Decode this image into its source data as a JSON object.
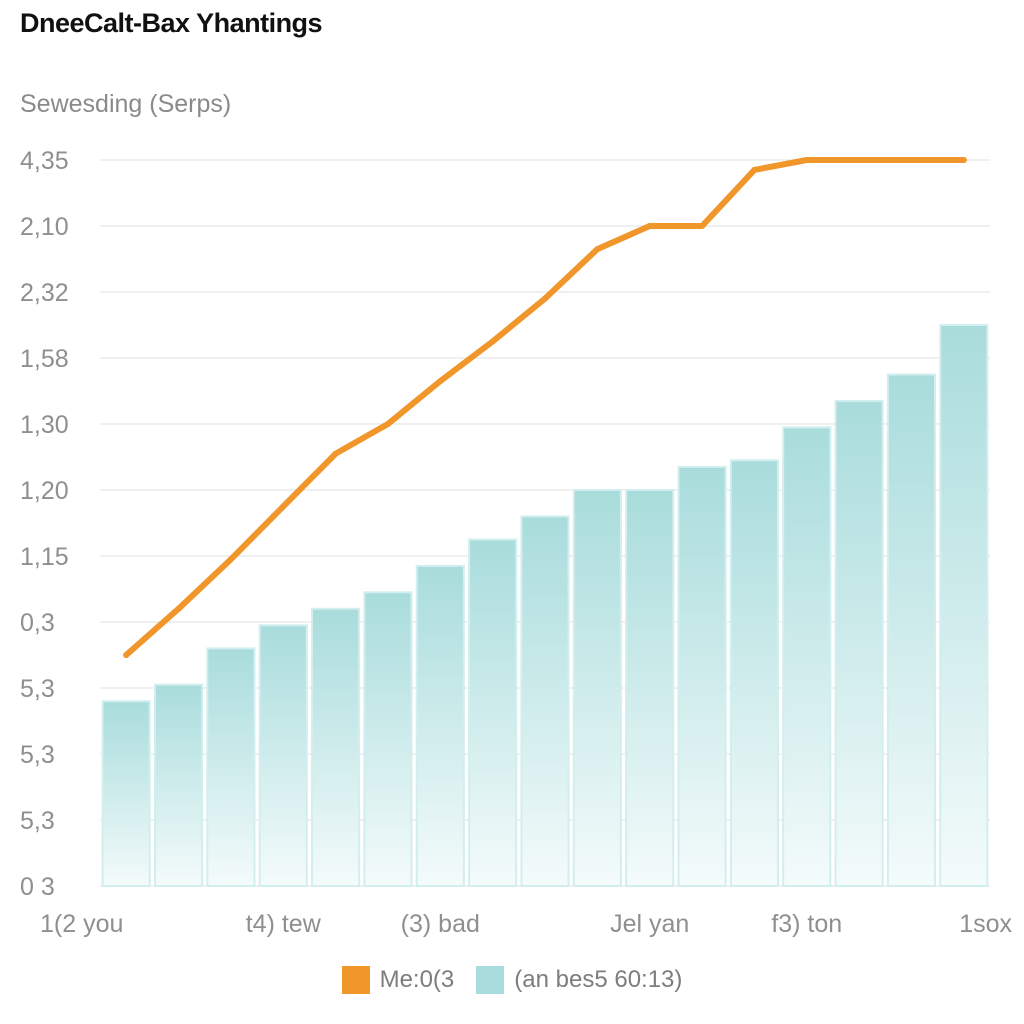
{
  "title": "DneeCalt-Bax Yhantings",
  "ylabel": "Sewesding (Serps)",
  "colors": {
    "line": "#f0962a",
    "bar_fill_top": "#a9dcdc",
    "bar_fill_bottom": "#f4fbfb",
    "bar_edge": "#d3eeee",
    "grid": "#ececec"
  },
  "chart_data": {
    "type": "bar",
    "title": "DneeCalt-Bax Yhantings",
    "ylabel": "Sewesding (Serps)",
    "xlabel": "",
    "y_tick_labels": [
      "4,35",
      "2,10",
      "2,32",
      "1,58",
      "1,30",
      "1,20",
      "1,15",
      "0,3",
      "5,3",
      "5,3",
      "5,3",
      "0 3"
    ],
    "x_tick_labels": [
      "1(2 you",
      "t4) tew",
      "(3) bad",
      "Jel yan",
      "f3) ton",
      "1sox"
    ],
    "ylim": [
      0,
      11
    ],
    "grid": true,
    "legend_position": "bottom-center",
    "bar_count": 17,
    "series": [
      {
        "name": "Me:0(3",
        "type": "line",
        "values": [
          3.5,
          4.2,
          4.95,
          5.75,
          6.55,
          7.0,
          7.65,
          8.25,
          8.9,
          9.65,
          10.0,
          10.0,
          10.85,
          11.0,
          11.0,
          11.0,
          11.0
        ]
      },
      {
        "name": "(an bes5 60:13)",
        "type": "bar",
        "values": [
          2.8,
          3.05,
          3.6,
          3.95,
          4.2,
          4.45,
          4.85,
          5.25,
          5.6,
          6.0,
          6.0,
          6.35,
          6.45,
          6.95,
          7.35,
          7.75,
          8.5
        ]
      }
    ]
  }
}
